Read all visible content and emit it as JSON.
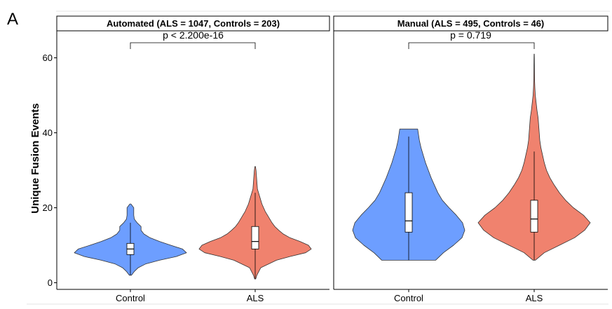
{
  "chart_data": {
    "type": "violin",
    "panel_letter": "A",
    "ylabel": "Unique Fusion Events",
    "ylim": [
      0,
      66
    ],
    "yticks": [
      0,
      20,
      40,
      60
    ],
    "grid": false,
    "legend": "none",
    "colors": {
      "Control": "#6d9eff",
      "ALS": "#f0826e"
    },
    "panels": [
      {
        "title": "Automated (ALS = 1047, Controls = 203)",
        "p_label": "p  < 2.200e-16",
        "categories": [
          "Control",
          "ALS"
        ],
        "groups": [
          {
            "name": "Control",
            "min": 2,
            "q1": 7.5,
            "median": 9,
            "q3": 10.5,
            "max": 21,
            "whisker_high": 16,
            "density": [
              [
                2,
                0.02
              ],
              [
                3,
                0.07
              ],
              [
                4,
                0.14
              ],
              [
                5,
                0.27
              ],
              [
                6,
                0.52
              ],
              [
                7,
                0.82
              ],
              [
                8,
                1.0
              ],
              [
                9,
                0.93
              ],
              [
                10,
                0.72
              ],
              [
                11,
                0.52
              ],
              [
                12,
                0.35
              ],
              [
                13,
                0.24
              ],
              [
                14,
                0.19
              ],
              [
                15,
                0.19
              ],
              [
                16,
                0.12
              ],
              [
                17,
                0.07
              ],
              [
                18,
                0.06
              ],
              [
                19,
                0.06
              ],
              [
                20,
                0.06
              ],
              [
                21,
                0.01
              ]
            ]
          },
          {
            "name": "ALS",
            "min": 1,
            "q1": 9,
            "median": 11,
            "q3": 15,
            "max": 31,
            "whisker_high": 24,
            "density": [
              [
                1,
                0.01
              ],
              [
                2,
                0.03
              ],
              [
                4,
                0.1
              ],
              [
                6,
                0.38
              ],
              [
                7,
                0.62
              ],
              [
                8,
                0.9
              ],
              [
                9,
                1.0
              ],
              [
                10,
                0.95
              ],
              [
                11,
                0.8
              ],
              [
                12,
                0.62
              ],
              [
                13,
                0.5
              ],
              [
                14,
                0.42
              ],
              [
                15,
                0.35
              ],
              [
                16,
                0.3
              ],
              [
                17,
                0.26
              ],
              [
                18,
                0.22
              ],
              [
                19,
                0.18
              ],
              [
                20,
                0.15
              ],
              [
                21,
                0.12
              ],
              [
                22,
                0.1
              ],
              [
                23,
                0.08
              ],
              [
                24,
                0.06
              ],
              [
                25,
                0.04
              ],
              [
                26,
                0.035
              ],
              [
                27,
                0.03
              ],
              [
                28,
                0.025
              ],
              [
                29,
                0.02
              ],
              [
                30,
                0.015
              ],
              [
                31,
                0.005
              ]
            ]
          }
        ]
      },
      {
        "title": "Manual (ALS = 495, Controls = 46)",
        "p_label": "p = 0.719",
        "categories": [
          "Control",
          "ALS"
        ],
        "groups": [
          {
            "name": "Control",
            "min": 6,
            "q1": 13.5,
            "median": 16.5,
            "q3": 24,
            "max": 41,
            "whisker_high": 39,
            "density": [
              [
                6,
                0.48
              ],
              [
                8,
                0.62
              ],
              [
                10,
                0.8
              ],
              [
                12,
                0.95
              ],
              [
                14,
                1.0
              ],
              [
                16,
                0.96
              ],
              [
                18,
                0.85
              ],
              [
                20,
                0.72
              ],
              [
                22,
                0.6
              ],
              [
                24,
                0.52
              ],
              [
                26,
                0.46
              ],
              [
                28,
                0.4
              ],
              [
                30,
                0.35
              ],
              [
                32,
                0.3
              ],
              [
                34,
                0.26
              ],
              [
                36,
                0.22
              ],
              [
                38,
                0.19
              ],
              [
                40,
                0.17
              ],
              [
                41,
                0.16
              ]
            ]
          },
          {
            "name": "ALS",
            "min": 6,
            "q1": 13.5,
            "median": 17,
            "q3": 22,
            "max": 61,
            "whisker_high": 35,
            "density": [
              [
                6,
                0.02
              ],
              [
                8,
                0.18
              ],
              [
                10,
                0.45
              ],
              [
                12,
                0.72
              ],
              [
                14,
                0.9
              ],
              [
                16,
                1.0
              ],
              [
                18,
                0.88
              ],
              [
                20,
                0.7
              ],
              [
                22,
                0.56
              ],
              [
                24,
                0.45
              ],
              [
                26,
                0.36
              ],
              [
                28,
                0.28
              ],
              [
                30,
                0.22
              ],
              [
                32,
                0.18
              ],
              [
                34,
                0.15
              ],
              [
                36,
                0.12
              ],
              [
                38,
                0.1
              ],
              [
                40,
                0.09
              ],
              [
                42,
                0.08
              ],
              [
                44,
                0.07
              ],
              [
                46,
                0.05
              ],
              [
                48,
                0.035
              ],
              [
                50,
                0.02
              ],
              [
                52,
                0.012
              ],
              [
                54,
                0.008
              ],
              [
                56,
                0.006
              ],
              [
                58,
                0.005
              ],
              [
                60,
                0.004
              ],
              [
                61,
                0.002
              ]
            ]
          }
        ]
      }
    ]
  }
}
